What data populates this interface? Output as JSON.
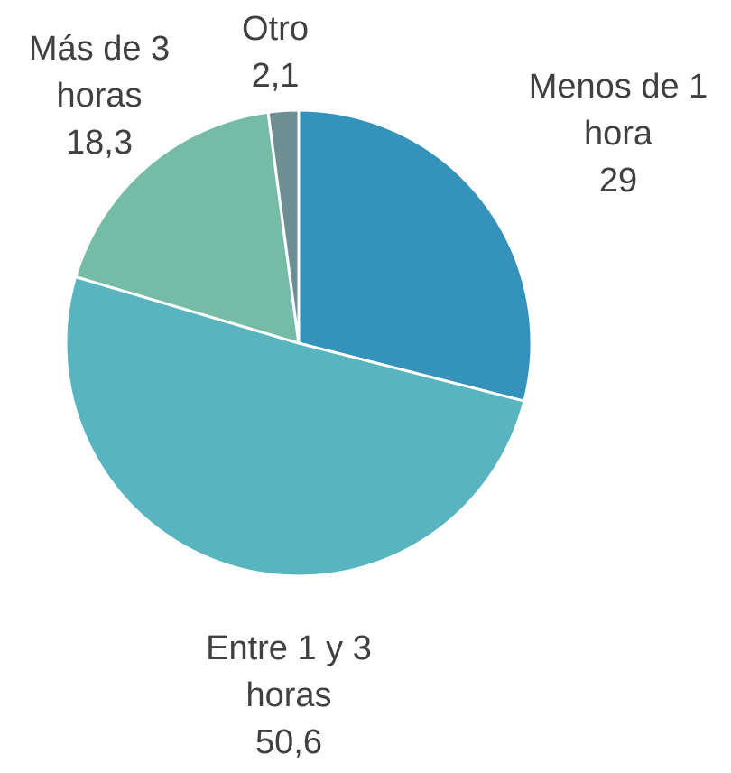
{
  "chart_data": {
    "type": "pie",
    "categories": [
      "Menos de 1 hora",
      "Entre 1 y 3 horas",
      "Más de 3 horas",
      "Otro"
    ],
    "values": [
      29,
      50.6,
      18.3,
      2.1
    ],
    "value_labels": [
      "29",
      "50,6",
      "18,3",
      "2,1"
    ],
    "colors": [
      "#3592bb",
      "#58b5c0",
      "#76bba5",
      "#6e8f91"
    ]
  }
}
